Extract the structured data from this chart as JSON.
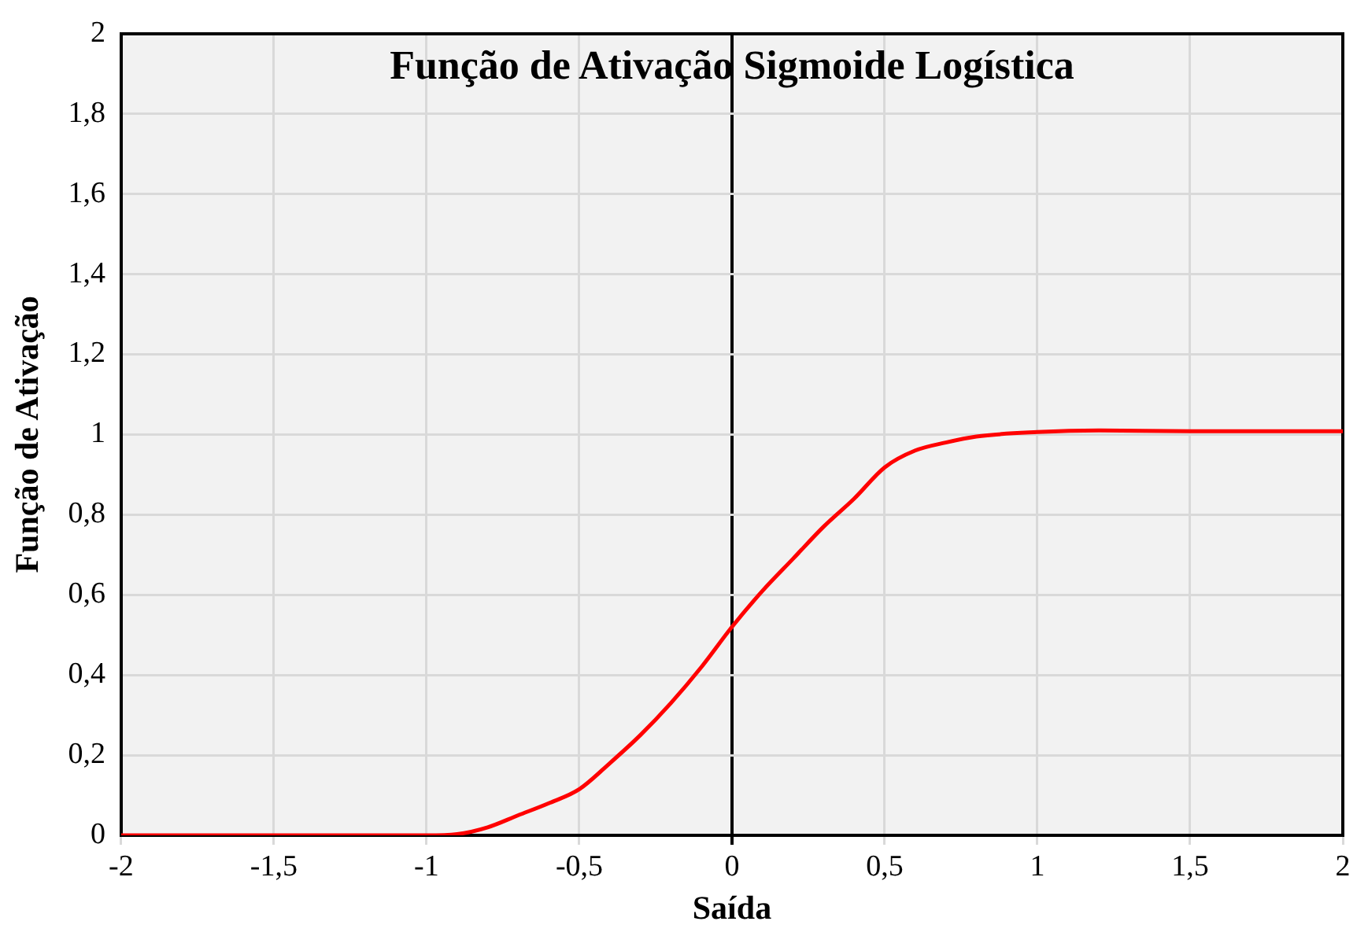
{
  "chart_data": {
    "type": "line",
    "title": "Função de Ativação Sigmoide Logística",
    "xlabel": "Saída",
    "ylabel": "Função de Ativação",
    "x": [
      -2,
      -1.5,
      -1,
      -0.9,
      -0.8,
      -0.7,
      -0.6,
      -0.5,
      -0.4,
      -0.3,
      -0.2,
      -0.1,
      0,
      0.1,
      0.2,
      0.3,
      0.4,
      0.5,
      0.6,
      0.7,
      0.8,
      1,
      1.2,
      1.5,
      2
    ],
    "series": [
      {
        "color": "#ff0000",
        "values": [
          0,
          0,
          0,
          0.003,
          0.02,
          0.05,
          0.08,
          0.115,
          0.18,
          0.25,
          0.33,
          0.42,
          0.52,
          0.61,
          0.69,
          0.77,
          0.84,
          0.918,
          0.96,
          0.98,
          0.995,
          1.006,
          1.01,
          1.008,
          1.008
        ]
      }
    ],
    "xlim": [
      -2,
      2
    ],
    "xticks": [
      -2,
      {
        "value": -1.5,
        "label": "-1,5"
      },
      -1,
      {
        "value": -0.5,
        "label": "-0,5"
      },
      0,
      {
        "value": 0.5,
        "label": "0,5"
      },
      1,
      {
        "value": 1.5,
        "label": "1,5"
      },
      2
    ],
    "ylim": [
      0,
      2
    ],
    "yticks": [
      0,
      {
        "value": 0.2,
        "label": "0,2"
      },
      {
        "value": 0.4,
        "label": "0,4"
      },
      {
        "value": 0.6,
        "label": "0,6"
      },
      {
        "value": 0.8,
        "label": "0,8"
      },
      1,
      {
        "value": 1.2,
        "label": "1,2"
      },
      {
        "value": 1.4,
        "label": "1,4"
      },
      {
        "value": 1.6,
        "label": "1,6"
      },
      {
        "value": 1.8,
        "label": "1,8"
      },
      2
    ],
    "grid": true,
    "legend": false,
    "marker": "none",
    "line_style": "solid"
  }
}
